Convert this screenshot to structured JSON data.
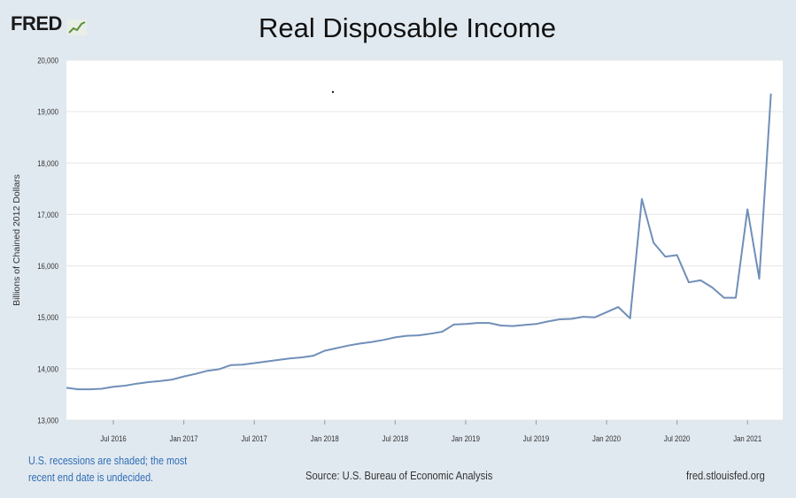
{
  "header": {
    "logo_text": "FRED",
    "title": "Real Disposable Income"
  },
  "footer": {
    "recession_note": "U.S. recessions are shaded; the most recent end date is undecided.",
    "source": "Source: U.S. Bureau of Economic Analysis",
    "url": "fred.stlouisfed.org"
  },
  "colors": {
    "background": "#e1e9f0",
    "plot_background": "#ffffff",
    "line": "#6f8fb8",
    "gridline": "#e6e6e6",
    "note_text": "#2f6db5"
  },
  "chart_data": {
    "type": "line",
    "title": "Real Disposable Income",
    "ylabel": "Billions of Chained 2012 Dollars",
    "xlabel": "",
    "ylim": [
      13000,
      20000
    ],
    "xlim": [
      "2016-03",
      "2021-04"
    ],
    "yticks": [
      13000,
      14000,
      15000,
      16000,
      17000,
      18000,
      19000,
      20000
    ],
    "ytick_labels": [
      "13,000",
      "14,000",
      "15,000",
      "16,000",
      "17,000",
      "18,000",
      "19,000",
      "20,000"
    ],
    "xticks": [
      "2016-07",
      "2017-01",
      "2017-07",
      "2018-01",
      "2018-07",
      "2019-01",
      "2019-07",
      "2020-01",
      "2020-07",
      "2021-01"
    ],
    "xtick_labels": [
      "Jul 2016",
      "Jan 2017",
      "Jul 2017",
      "Jan 2018",
      "Jul 2018",
      "Jan 2019",
      "Jul 2019",
      "Jan 2020",
      "Jul 2020",
      "Jan 2021"
    ],
    "grid": true,
    "series": [
      {
        "x": [
          "2016-03",
          "2016-04",
          "2016-05",
          "2016-06",
          "2016-07",
          "2016-08",
          "2016-09",
          "2016-10",
          "2016-11",
          "2016-12",
          "2017-01",
          "2017-02",
          "2017-03",
          "2017-04",
          "2017-05",
          "2017-06",
          "2017-07",
          "2017-08",
          "2017-09",
          "2017-10",
          "2017-11",
          "2017-12",
          "2018-01",
          "2018-02",
          "2018-03",
          "2018-04",
          "2018-05",
          "2018-06",
          "2018-07",
          "2018-08",
          "2018-09",
          "2018-10",
          "2018-11",
          "2018-12",
          "2019-01",
          "2019-02",
          "2019-03",
          "2019-04",
          "2019-05",
          "2019-06",
          "2019-07",
          "2019-08",
          "2019-09",
          "2019-10",
          "2019-11",
          "2019-12",
          "2020-01",
          "2020-02",
          "2020-03",
          "2020-04",
          "2020-05",
          "2020-06",
          "2020-07",
          "2020-08",
          "2020-09",
          "2020-10",
          "2020-11",
          "2020-12",
          "2021-01",
          "2021-02",
          "2021-03"
        ],
        "values": [
          13630,
          13600,
          13600,
          13610,
          13650,
          13670,
          13710,
          13740,
          13760,
          13790,
          13850,
          13900,
          13960,
          13990,
          14070,
          14080,
          14110,
          14140,
          14170,
          14200,
          14220,
          14250,
          14350,
          14400,
          14450,
          14490,
          14520,
          14560,
          14610,
          14640,
          14650,
          14680,
          14720,
          14860,
          14870,
          14890,
          14890,
          14840,
          14830,
          14850,
          14870,
          14920,
          14960,
          14970,
          15010,
          15000,
          15100,
          15200,
          14980,
          17300,
          16450,
          16180,
          16210,
          15680,
          15720,
          15580,
          15380,
          15380,
          17100,
          15750,
          19350
        ]
      }
    ]
  }
}
